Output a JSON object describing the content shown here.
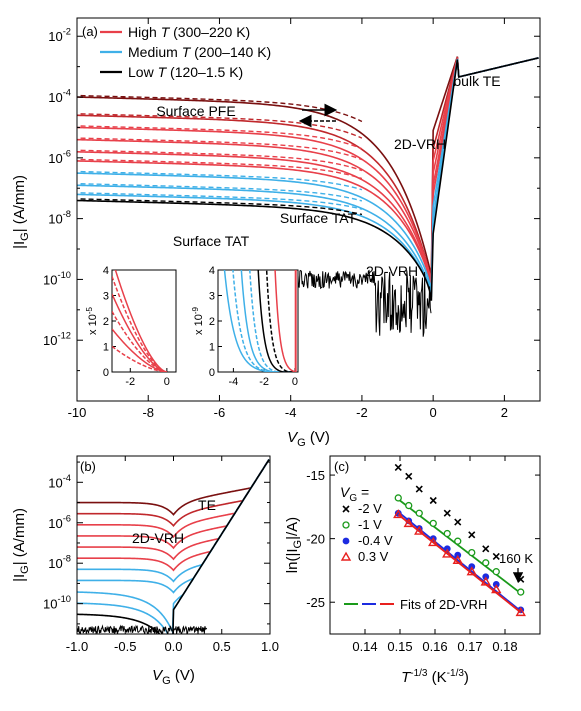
{
  "chart_data": [
    {
      "type": "line",
      "panel": "(a)",
      "xlabel": "V",
      "xlabel_sub": "G",
      "xlabel_unit": " (V)",
      "ylabel": "|I",
      "ylabel_sub": "G",
      "ylabel_unit": "| (A/mm)",
      "xlim": [
        -10,
        3
      ],
      "ylim_log10": [
        -14,
        -1.4
      ],
      "log_y": true,
      "xticks": [
        -10,
        -8,
        -6,
        -4,
        -2,
        0,
        2
      ],
      "xtick_labels": [
        "-10",
        "-8",
        "-6",
        "-4",
        "-2",
        "0",
        "2"
      ],
      "ytick_labels": [
        {
          "base": "10",
          "exp": "-2",
          "v": -2
        },
        {
          "base": "10",
          "exp": "-4",
          "v": -4
        },
        {
          "base": "10",
          "exp": "-6",
          "v": -6
        },
        {
          "base": "10",
          "exp": "-8",
          "v": -8
        },
        {
          "base": "10",
          "exp": "-10",
          "v": -10
        },
        {
          "base": "10",
          "exp": "-12",
          "v": -12
        }
      ],
      "legend": [
        {
          "pre": "High ",
          "var": "T",
          "post": " (300–220 K)",
          "color": "#e8404a"
        },
        {
          "pre": "Medium ",
          "var": "T",
          "post": " (200–140 K)",
          "color": "#3fb0e8"
        },
        {
          "pre": "Low ",
          "var": "T",
          "post": " (120–1.5 K)",
          "color": "#000000"
        }
      ],
      "legend_position": "top-left",
      "annotations": [
        {
          "text": "Surface PFE",
          "color": "#e8404a"
        },
        {
          "text": "2D-VRH",
          "color": "#e8404a"
        },
        {
          "text": "bulk TE",
          "color": "#000000"
        },
        {
          "text": "Surface TAT",
          "color": "#3fb0e8"
        },
        {
          "text": "2D-VRH",
          "color": "#3fb0e8"
        },
        {
          "text": "Surface TAT",
          "color": "#000000"
        }
      ],
      "series": [
        {
          "group": "high",
          "color": "#7a1010",
          "offset_log10": -4.0,
          "x_sat": -8.0,
          "x_fall": -3.5
        },
        {
          "group": "high",
          "color": "#c0282c",
          "offset_log10": -4.6,
          "x_sat": -8.0,
          "x_fall": -3.4
        },
        {
          "group": "high",
          "color": "#e8404a",
          "offset_log10": -5.0,
          "x_sat": -8.0,
          "x_fall": -3.3
        },
        {
          "group": "high",
          "color": "#e8404a",
          "offset_log10": -5.4,
          "x_sat": -8.0,
          "x_fall": -3.2
        },
        {
          "group": "high",
          "color": "#e8404a",
          "offset_log10": -5.8,
          "x_sat": -8.0,
          "x_fall": -3.1
        },
        {
          "group": "high",
          "color": "#e8404a",
          "offset_log10": -6.1,
          "x_sat": -8.0,
          "x_fall": -3.0
        },
        {
          "group": "medium",
          "color": "#3fb0e8",
          "offset_log10": -6.5,
          "x_sat": -8.0,
          "x_fall": -2.9
        },
        {
          "group": "medium",
          "color": "#3fb0e8",
          "offset_log10": -6.9,
          "x_sat": -8.0,
          "x_fall": -2.8
        },
        {
          "group": "medium",
          "color": "#3fb0e8",
          "offset_log10": -7.2,
          "x_sat": -8.0,
          "x_fall": -2.7
        },
        {
          "group": "low",
          "color": "#000000",
          "offset_log10": -7.4,
          "x_sat": -8.0,
          "x_fall": -2.6
        }
      ],
      "insets": [
        {
          "xlim": [
            -3,
            0.5
          ],
          "ylim": [
            0,
            4
          ],
          "xticks": [
            -2,
            0
          ],
          "xtick_labels": [
            "-2",
            "0"
          ],
          "yticks": [
            0,
            1,
            2,
            3,
            4
          ],
          "ytick_labels": [
            "0",
            "1",
            "2",
            "3",
            "4"
          ],
          "ylabel": "x 10",
          "ylabel_exp": "-5"
        },
        {
          "xlim": [
            -5,
            0.2
          ],
          "ylim": [
            0,
            4
          ],
          "xticks": [
            -4,
            -2,
            0
          ],
          "xtick_labels": [
            "-4",
            "-2",
            "0"
          ],
          "yticks": [
            0,
            1,
            2,
            3,
            4
          ],
          "ytick_labels": [
            "0",
            "1",
            "2",
            "3",
            "4"
          ],
          "ylabel": "x 10",
          "ylabel_exp": "-9"
        }
      ]
    },
    {
      "type": "line",
      "panel": "(b)",
      "xlabel": "V",
      "xlabel_sub": "G",
      "xlabel_unit": " (V)",
      "ylabel": "|I",
      "ylabel_sub": "G",
      "ylabel_unit": "| (A/mm)",
      "xlim": [
        -1.0,
        1.0
      ],
      "ylim_log10": [
        -11.5,
        -2.7
      ],
      "log_y": true,
      "xticks": [
        -1.0,
        -0.5,
        0.0,
        0.5,
        1.0
      ],
      "xtick_labels": [
        "-1.0",
        "-0.5",
        "0.0",
        "0.5",
        "1.0"
      ],
      "ytick_labels": [
        {
          "base": "10",
          "exp": "-4",
          "v": -4
        },
        {
          "base": "10",
          "exp": "-6",
          "v": -6
        },
        {
          "base": "10",
          "exp": "-8",
          "v": -8
        },
        {
          "base": "10",
          "exp": "-10",
          "v": -10
        }
      ],
      "annotations": [
        {
          "text": "2D-VRH",
          "color": "#000000"
        },
        {
          "text": "TE",
          "color": "#000000"
        }
      ]
    },
    {
      "type": "scatter",
      "panel": "(c)",
      "xlabel": "T",
      "xlabel_exp": "-1/3",
      "xlabel_unit": " (K",
      "xlabel_unit_exp": "-1/3",
      "xlabel_close": ")",
      "ylabel": "ln(|I",
      "ylabel_sub": "G",
      "ylabel_unit": "|/A)",
      "xlim": [
        0.13,
        0.19
      ],
      "ylim": [
        -27.5,
        -13.5
      ],
      "xticks": [
        0.14,
        0.15,
        0.16,
        0.17,
        0.18
      ],
      "xtick_labels": [
        "0.14",
        "0.15",
        "0.16",
        "0.17",
        "0.18"
      ],
      "yticks": [
        -25,
        -20,
        -15
      ],
      "ytick_labels": [
        "-25",
        "-20",
        "-15"
      ],
      "legend_title": "V",
      "legend_title_sub": "G",
      "legend_title_eq": " =",
      "legend_position": "left",
      "annotation": "160 K",
      "fit_label": "Fits of 2D-VRH",
      "x": [
        0.1495,
        0.1525,
        0.1555,
        0.1595,
        0.1635,
        0.1665,
        0.1705,
        0.1745,
        0.1775,
        0.1845
      ],
      "series": [
        {
          "name": "-2 V",
          "marker": "x",
          "color": "#000000",
          "y": [
            -14.4,
            -15.1,
            -16.1,
            -17.0,
            -18.0,
            -18.7,
            -19.7,
            -20.8,
            -21.4,
            -23.2
          ],
          "fit": null
        },
        {
          "name": "-1 V",
          "marker": "open-circle",
          "color": "#1a9a1a",
          "y": [
            -16.8,
            -17.4,
            -18.0,
            -18.8,
            -19.6,
            -20.2,
            -21.1,
            -21.9,
            -22.6,
            -24.2
          ],
          "fit": [
            [
              0.1495,
              -16.9
            ],
            [
              0.1845,
              -24.3
            ]
          ]
        },
        {
          "name": "-0.4 V",
          "marker": "filled-circle",
          "color": "#1c2be0",
          "y": [
            -18.0,
            -18.6,
            -19.2,
            -20.0,
            -20.8,
            -21.3,
            -22.2,
            -23.0,
            -23.6,
            -25.6
          ],
          "fit": [
            [
              0.1495,
              -17.9
            ],
            [
              0.1845,
              -25.7
            ]
          ]
        },
        {
          "name": "0.3 V",
          "marker": "open-triangle",
          "color": "#e8201e",
          "y": [
            -18.1,
            -18.8,
            -19.4,
            -20.3,
            -21.2,
            -21.7,
            -22.6,
            -23.4,
            -24.0,
            -25.8
          ],
          "fit": [
            [
              0.1495,
              -18.1
            ],
            [
              0.1845,
              -25.8
            ]
          ]
        }
      ]
    }
  ]
}
